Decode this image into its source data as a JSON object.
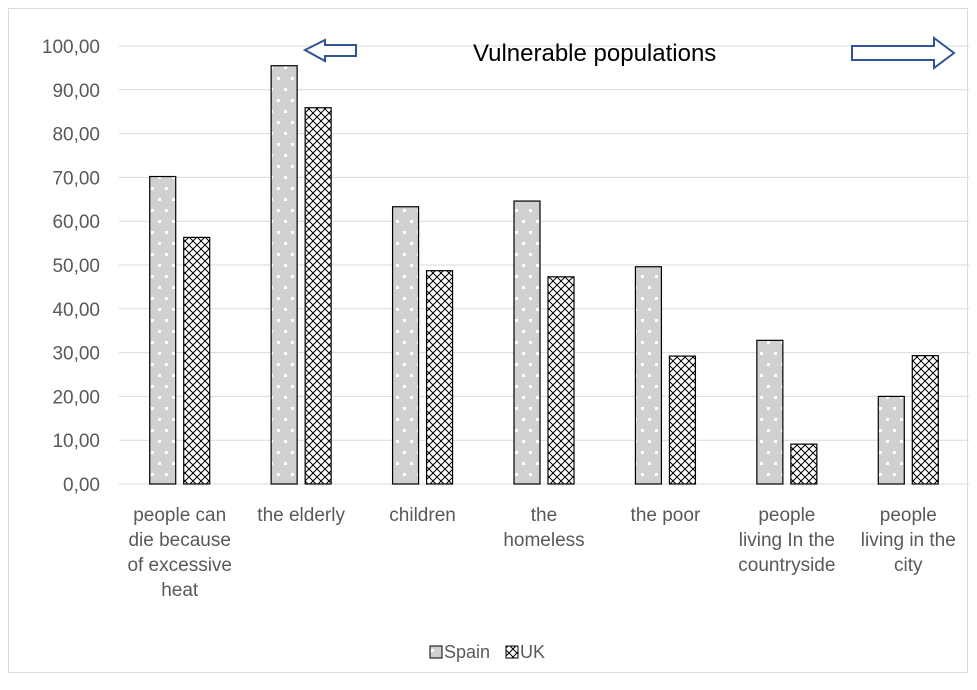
{
  "chart_data": {
    "type": "bar",
    "annotation": "Vulnerable populations",
    "categories": [
      "people can die because of excessive heat",
      "the elderly",
      "children",
      "the homeless",
      "the poor",
      "people living In the countryside",
      "people living in the city"
    ],
    "category_lines": [
      [
        "people can",
        "die because",
        "of excessive",
        "heat"
      ],
      [
        "the elderly"
      ],
      [
        "children"
      ],
      [
        "the",
        "homeless"
      ],
      [
        "the poor"
      ],
      [
        "people",
        "living In the",
        "countryside"
      ],
      [
        "people",
        "living in the",
        "city"
      ]
    ],
    "series": [
      {
        "name": "Spain",
        "values": [
          70.2,
          95.5,
          63.3,
          64.6,
          49.6,
          32.8,
          20.0
        ]
      },
      {
        "name": "UK",
        "values": [
          56.3,
          85.9,
          48.7,
          47.3,
          29.2,
          9.1,
          29.3
        ]
      }
    ],
    "ylim": [
      0,
      100
    ],
    "yticks": [
      "0,00",
      "10,00",
      "20,00",
      "30,00",
      "40,00",
      "50,00",
      "60,00",
      "70,00",
      "80,00",
      "90,00",
      "100,00"
    ],
    "grid": true,
    "legend_position": "bottom",
    "colors": {
      "spain_fill": "#d0d0d0",
      "spain_dot": "#ffffff",
      "uk_fill": "#ffffff",
      "uk_hatch": "#000000",
      "grid": "#d9d9d9",
      "arrow": "#2f5597"
    }
  }
}
